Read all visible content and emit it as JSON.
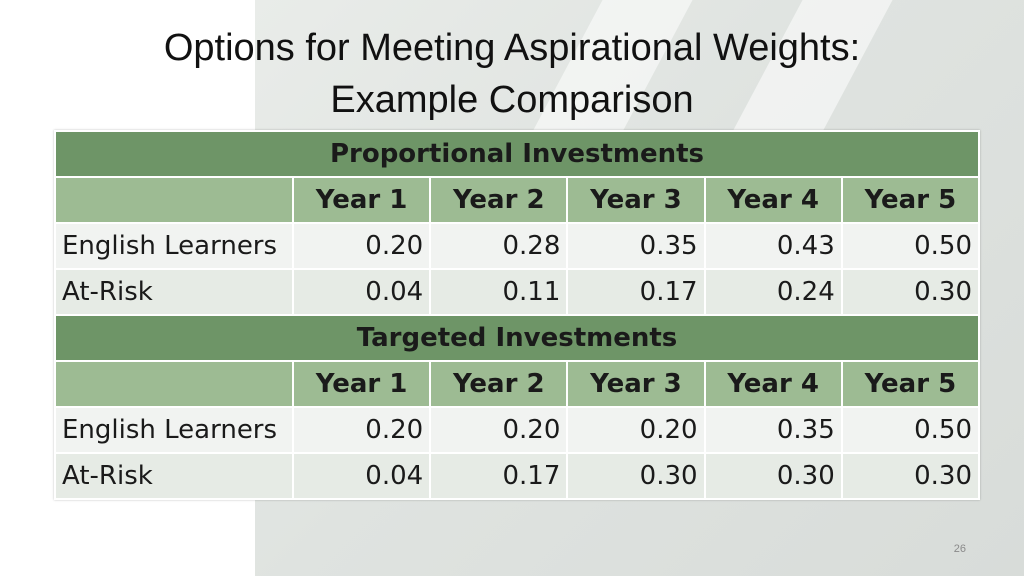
{
  "slide": {
    "title_line1": "Options for Meeting Aspirational Weights:",
    "title_line2": "Example Comparison",
    "page_number": "26"
  },
  "table": {
    "sections": [
      {
        "heading": "Proportional Investments",
        "columns": [
          "Year 1",
          "Year 2",
          "Year 3",
          "Year 4",
          "Year 5"
        ],
        "rows": [
          {
            "label": "English Learners",
            "values": [
              "0.20",
              "0.28",
              "0.35",
              "0.43",
              "0.50"
            ]
          },
          {
            "label": "At-Risk",
            "values": [
              "0.04",
              "0.11",
              "0.17",
              "0.24",
              "0.30"
            ]
          }
        ]
      },
      {
        "heading": "Targeted Investments",
        "columns": [
          "Year 1",
          "Year 2",
          "Year 3",
          "Year 4",
          "Year 5"
        ],
        "rows": [
          {
            "label": "English Learners",
            "values": [
              "0.20",
              "0.20",
              "0.20",
              "0.35",
              "0.50"
            ]
          },
          {
            "label": "At-Risk",
            "values": [
              "0.04",
              "0.17",
              "0.30",
              "0.30",
              "0.30"
            ]
          }
        ]
      }
    ]
  },
  "colors": {
    "section_header": "#6e9567",
    "column_header": "#9dbb93",
    "row_light": "#f1f3f1",
    "row_alt": "#e6ebe5"
  }
}
